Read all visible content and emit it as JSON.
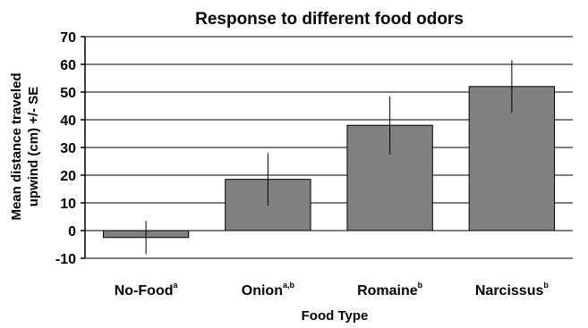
{
  "chart_data": {
    "type": "bar",
    "title": "Response to different food odors",
    "xlabel": "Food Type",
    "ylabel_lines": [
      "Mean distance traveled",
      "upwind (cm) +/- SE"
    ],
    "ylim": [
      -10,
      70
    ],
    "yticks": [
      -10,
      0,
      10,
      20,
      30,
      40,
      50,
      60,
      70
    ],
    "grid": true,
    "categories": [
      "No-Food",
      "Onion",
      "Romaine",
      "Narcissus"
    ],
    "superscripts": [
      "a",
      "a,b",
      "b",
      "b"
    ],
    "values": [
      -2.5,
      18.5,
      38,
      52
    ],
    "errors": [
      6,
      9.5,
      10.5,
      9.5
    ],
    "bar_color": "#808080"
  }
}
